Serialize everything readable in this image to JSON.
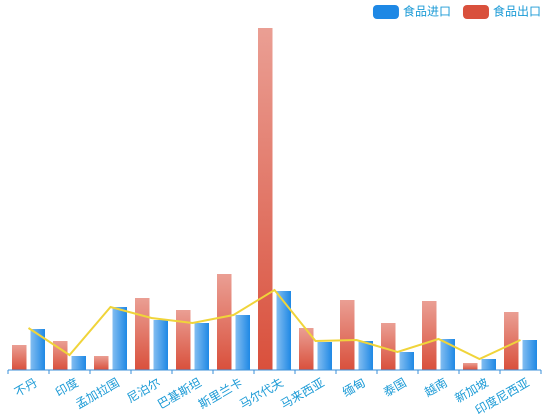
{
  "chart_data": {
    "type": "bar",
    "categories": [
      "不丹",
      "印度",
      "孟加拉国",
      "尼泊尔",
      "巴基斯坦",
      "斯里兰卡",
      "马尔代夫",
      "马来西亚",
      "缅甸",
      "泰国",
      "越南",
      "新加坡",
      "印度尼西亚"
    ],
    "series": [
      {
        "name": "食品进口",
        "color": "#1e88e5",
        "values": [
          41,
          14,
          63,
          50,
          47,
          55,
          79,
          28,
          29,
          18,
          31,
          11,
          30
        ]
      },
      {
        "name": "食品出口",
        "color": "#d9503c",
        "values": [
          25,
          29,
          14,
          72,
          60,
          96,
          342,
          42,
          70,
          47,
          69,
          7,
          58
        ]
      }
    ],
    "line": {
      "color": "#f0d43a",
      "values": [
        42,
        15,
        63,
        52,
        47,
        55,
        80,
        29,
        30,
        18,
        31,
        11,
        30
      ]
    },
    "ylim": [
      0,
      350
    ],
    "legend": "top-right"
  }
}
